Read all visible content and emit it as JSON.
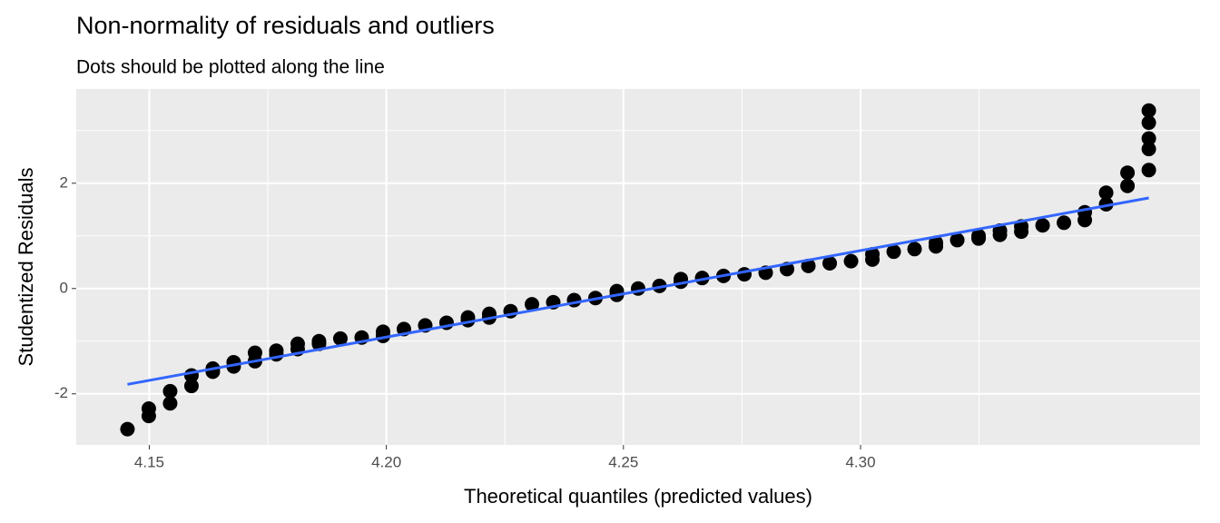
{
  "chart_data": {
    "type": "scatter",
    "title": "Non-normality of residuals and outliers",
    "subtitle": "Dots should be plotted along the line",
    "x_label": "Theoretical quantiles (predicted values)",
    "y_label": "Studentized Residuals",
    "xlim": [
      4.1346,
      4.3716
    ],
    "ylim": [
      -2.97,
      3.79
    ],
    "xticks": [
      4.15,
      {
        "value": 4.2,
        "label": "4.20"
      },
      4.25,
      {
        "value": 4.3,
        "label": "4.30"
      }
    ],
    "yticks": [
      -2,
      0,
      2
    ],
    "x_minor_ticks": [
      4.175,
      4.225,
      4.275,
      4.325
    ],
    "y_minor_ticks": [
      -1,
      1,
      3
    ],
    "grid": true,
    "series": [
      {
        "color": "#000000",
        "x": [
          4.1454,
          4.1499,
          4.1499,
          4.1544,
          4.1544,
          4.1589,
          4.1589,
          4.1634,
          4.1634,
          4.1678,
          4.1678,
          4.1723,
          4.1723,
          4.1768,
          4.1768,
          4.1813,
          4.1813,
          4.1858,
          4.1858,
          4.1903,
          4.1948,
          4.1993,
          4.1993,
          4.2037,
          4.2082,
          4.2127,
          4.2172,
          4.2172,
          4.2217,
          4.2217,
          4.2262,
          4.2307,
          4.2352,
          4.2396,
          4.2441,
          4.2486,
          4.2486,
          4.2531,
          4.2576,
          4.2621,
          4.2621,
          4.2666,
          4.2711,
          4.2755,
          4.28,
          4.2845,
          4.289,
          4.2935,
          4.298,
          4.3025,
          4.3025,
          4.307,
          4.3114,
          4.3159,
          4.3159,
          4.3204,
          4.3249,
          4.3249,
          4.3294,
          4.3294,
          4.3339,
          4.3339,
          4.3384,
          4.3429,
          4.3473,
          4.3473,
          4.3518,
          4.3518,
          4.3563,
          4.3563,
          4.3608,
          4.3608,
          4.3608,
          4.3608,
          4.3608
        ],
        "values": [
          -2.67,
          -2.28,
          -2.42,
          -1.95,
          -2.18,
          -1.65,
          -1.85,
          -1.52,
          -1.58,
          -1.4,
          -1.48,
          -1.22,
          -1.38,
          -1.18,
          -1.25,
          -1.05,
          -1.15,
          -1.0,
          -1.05,
          -0.95,
          -0.93,
          -0.82,
          -0.9,
          -0.77,
          -0.7,
          -0.65,
          -0.55,
          -0.6,
          -0.48,
          -0.55,
          -0.43,
          -0.3,
          -0.26,
          -0.22,
          -0.18,
          -0.05,
          -0.12,
          0.0,
          0.05,
          0.13,
          0.18,
          0.2,
          0.24,
          0.27,
          0.3,
          0.37,
          0.43,
          0.48,
          0.52,
          0.55,
          0.65,
          0.7,
          0.75,
          0.8,
          0.87,
          0.92,
          0.95,
          1.0,
          1.02,
          1.1,
          1.08,
          1.18,
          1.2,
          1.25,
          1.3,
          1.45,
          1.6,
          1.82,
          1.95,
          2.2,
          2.25,
          2.65,
          2.85,
          3.15,
          3.38
        ]
      }
    ],
    "fit_line": {
      "color": "#3366FF",
      "x": [
        4.1454,
        4.3608
      ],
      "y": [
        -1.82,
        1.72
      ]
    }
  }
}
